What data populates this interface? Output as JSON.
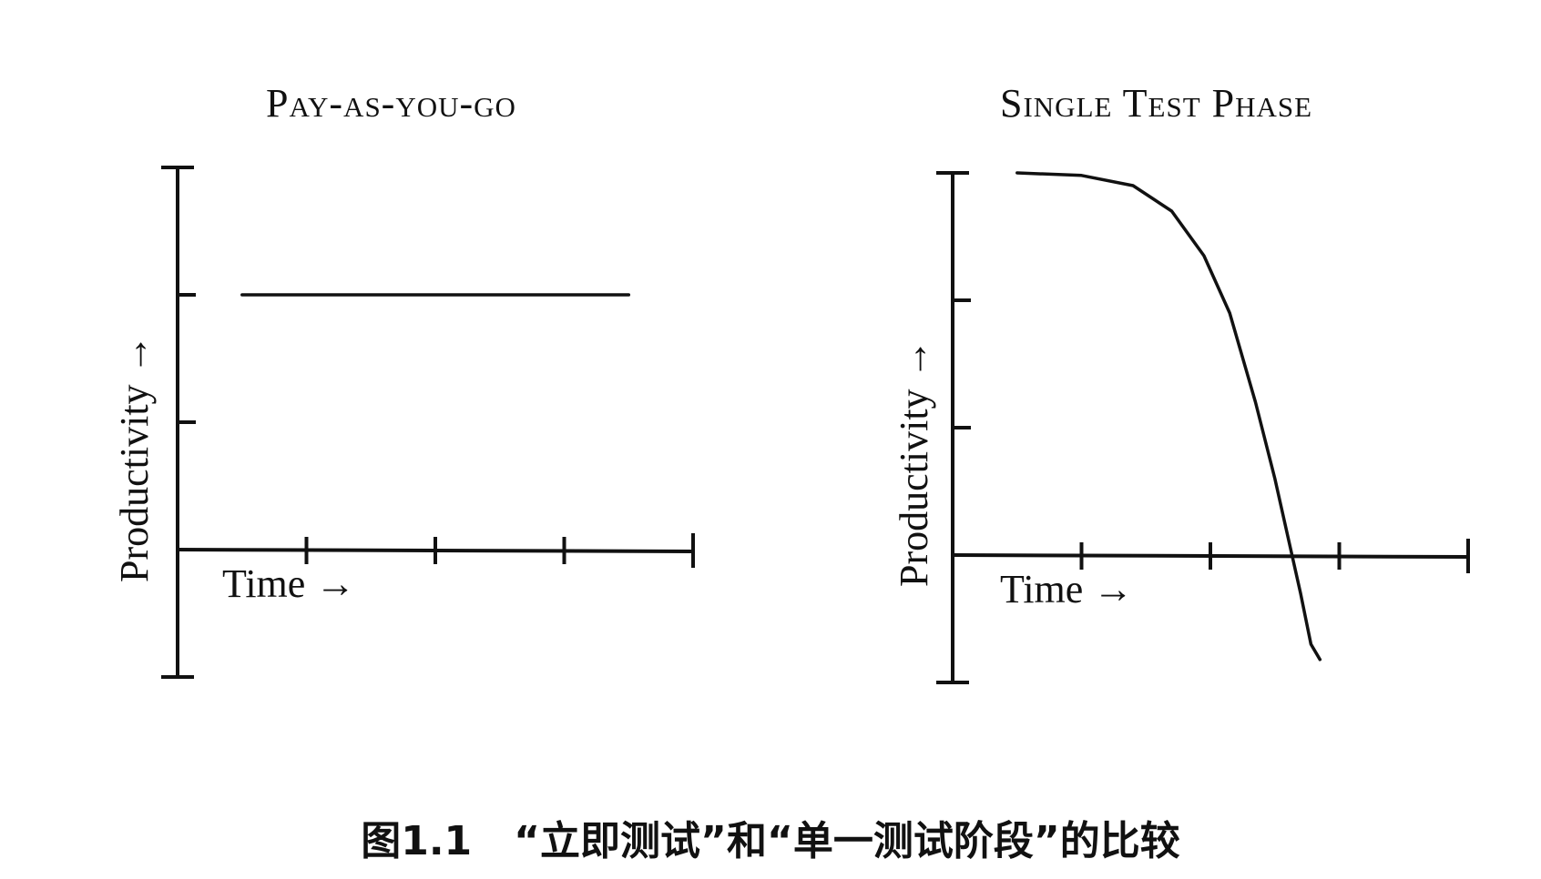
{
  "chart_data": [
    {
      "type": "line",
      "title": "Pay-as-you-go",
      "xlabel": "Time →",
      "ylabel": "Productivity →",
      "x_ticks": 4,
      "y_ticks": 2,
      "xlim": [
        0,
        4
      ],
      "ylim": [
        -1,
        3
      ],
      "grid": false,
      "series": [
        {
          "x": [
            0.5,
            3.5
          ],
          "y": [
            2,
            2
          ]
        }
      ]
    },
    {
      "type": "line",
      "title": "Single Test Phase",
      "xlabel": "Time →",
      "ylabel": "Productivity →",
      "x_ticks": 4,
      "y_ticks": 2,
      "xlim": [
        0,
        4
      ],
      "ylim": [
        -1,
        3
      ],
      "grid": false,
      "series": [
        {
          "x": [
            0.5,
            1.0,
            1.4,
            1.7,
            1.95,
            2.15,
            2.35,
            2.5,
            2.6,
            2.7,
            2.78,
            2.85
          ],
          "y": [
            3.0,
            2.98,
            2.9,
            2.7,
            2.35,
            1.9,
            1.2,
            0.6,
            0.15,
            -0.3,
            -0.7,
            -0.82
          ]
        }
      ]
    }
  ],
  "caption": "图1.1   “立即测试”和“单一测试阶段”的比较",
  "colors": {
    "ink": "#111111",
    "background": "#ffffff"
  }
}
